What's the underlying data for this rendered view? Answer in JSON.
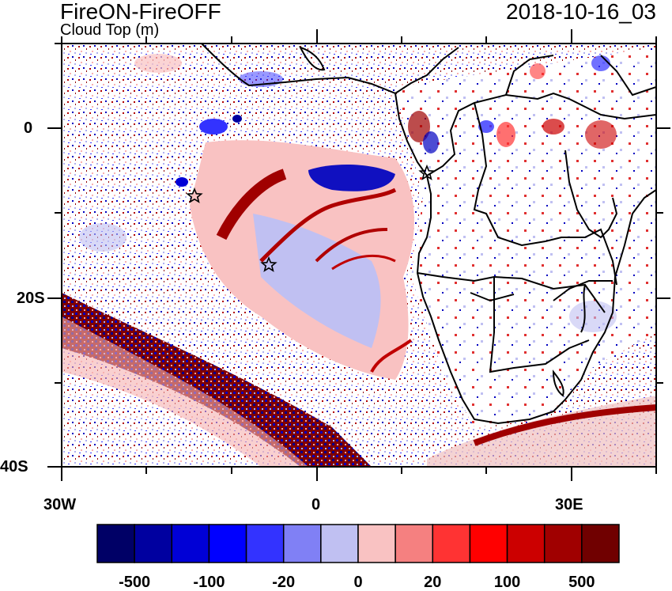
{
  "title": "FireON-FireOFF",
  "subtitle": "Cloud Top (m)",
  "date": "2018-10-16_03",
  "lat_labels": [
    "0",
    "20S",
    "40S"
  ],
  "lon_labels": [
    "30W",
    "0",
    "30E"
  ],
  "colorbar": {
    "colors": [
      "#000066",
      "#0000a0",
      "#0000d6",
      "#0000ff",
      "#3333ff",
      "#8080f5",
      "#c0c0f2",
      "#f9c2c2",
      "#f58080",
      "#ff3333",
      "#ff0000",
      "#cc0000",
      "#a00000",
      "#700000"
    ],
    "labels": [
      "-500",
      "-100",
      "-20",
      "0",
      "20",
      "100",
      "500"
    ]
  }
}
